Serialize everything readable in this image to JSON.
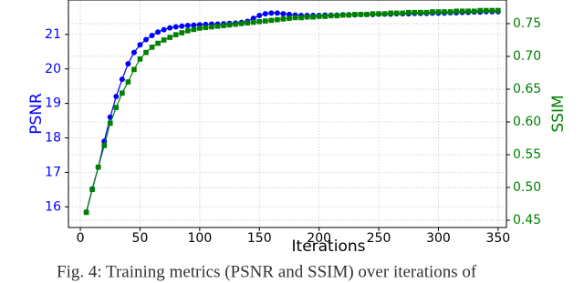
{
  "chart_data": {
    "type": "line",
    "x_label": "Iterations",
    "y_label": "PSNR",
    "y2_label": "SSIM",
    "caption": "Fig. 4: Training metrics (PSNR and SSIM) over iterations of",
    "x": [
      5,
      10,
      15,
      20,
      25,
      30,
      35,
      40,
      45,
      50,
      55,
      60,
      65,
      70,
      75,
      80,
      85,
      90,
      95,
      100,
      105,
      110,
      115,
      120,
      125,
      130,
      135,
      140,
      145,
      150,
      155,
      160,
      165,
      170,
      175,
      180,
      185,
      190,
      195,
      200,
      205,
      210,
      215,
      220,
      225,
      230,
      235,
      240,
      245,
      250,
      255,
      260,
      265,
      270,
      275,
      280,
      285,
      290,
      295,
      300,
      305,
      310,
      315,
      320,
      325,
      330,
      335,
      340,
      345,
      350
    ],
    "series": [
      {
        "name": "PSNR",
        "color": "#0000ff",
        "marker": "circle",
        "values": [
          15.85,
          16.52,
          17.15,
          17.9,
          18.6,
          19.2,
          19.7,
          20.15,
          20.48,
          20.7,
          20.85,
          20.97,
          21.07,
          21.14,
          21.19,
          21.22,
          21.24,
          21.26,
          21.27,
          21.28,
          21.29,
          21.3,
          21.3,
          21.31,
          21.32,
          21.33,
          21.35,
          21.38,
          21.47,
          21.55,
          21.6,
          21.62,
          21.62,
          21.6,
          21.58,
          21.56,
          21.55,
          21.55,
          21.55,
          21.55,
          21.56,
          21.56,
          21.56,
          21.57,
          21.57,
          21.57,
          21.58,
          21.58,
          21.58,
          21.59,
          21.59,
          21.59,
          21.6,
          21.6,
          21.6,
          21.61,
          21.61,
          21.61,
          21.62,
          21.62,
          21.62,
          21.63,
          21.63,
          21.64,
          21.64,
          21.65,
          21.65,
          21.66,
          21.66,
          21.66
        ]
      },
      {
        "name": "SSIM",
        "color": "#008000",
        "marker": "square",
        "axis": "y2",
        "values": [
          0.462,
          0.497,
          0.531,
          0.564,
          0.598,
          0.622,
          0.644,
          0.661,
          0.68,
          0.696,
          0.706,
          0.714,
          0.72,
          0.725,
          0.729,
          0.733,
          0.736,
          0.739,
          0.741,
          0.743,
          0.744,
          0.745,
          0.746,
          0.747,
          0.748,
          0.749,
          0.75,
          0.751,
          0.752,
          0.753,
          0.754,
          0.755,
          0.756,
          0.757,
          0.758,
          0.759,
          0.759,
          0.76,
          0.76,
          0.761,
          0.761,
          0.762,
          0.762,
          0.763,
          0.763,
          0.764,
          0.764,
          0.764,
          0.765,
          0.765,
          0.765,
          0.766,
          0.766,
          0.766,
          0.767,
          0.767,
          0.767,
          0.767,
          0.768,
          0.768,
          0.768,
          0.768,
          0.769,
          0.769,
          0.769,
          0.769,
          0.77,
          0.77,
          0.77,
          0.77
        ]
      }
    ],
    "xlim": [
      -10,
      357
    ],
    "xticks": [
      0,
      50,
      100,
      150,
      200,
      250,
      300,
      350
    ],
    "ylim": [
      15.4,
      22
    ],
    "yticks": [
      16,
      17,
      18,
      19,
      20,
      21
    ],
    "y2lim": [
      0.439,
      0.786
    ],
    "y2ticks": [
      0.45,
      {
        "value": 0.5,
        "label": "0.50"
      },
      0.55,
      {
        "value": 0.6,
        "label": "0.60"
      },
      0.65,
      {
        "value": 0.7,
        "label": "0.70"
      },
      0.75
    ],
    "grid": true
  }
}
